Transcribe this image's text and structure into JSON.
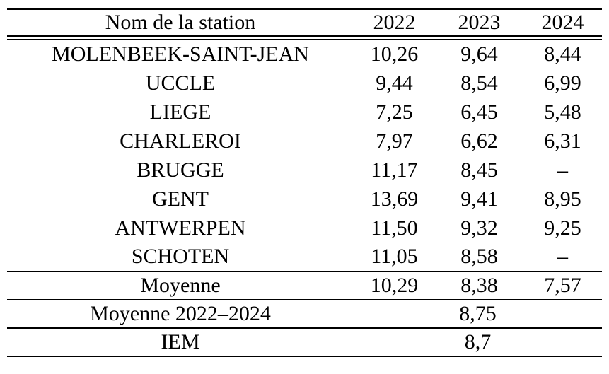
{
  "page": {
    "background_color": "#ffffff",
    "text_color": "#000000"
  },
  "table": {
    "header": {
      "station": "Nom de la station",
      "years": [
        "2022",
        "2023",
        "2024"
      ]
    },
    "rows": [
      {
        "station": "MOLENBEEK-SAINT-JEAN",
        "y2022": "10,26",
        "y2023": "9,64",
        "y2024": "8,44"
      },
      {
        "station": "UCCLE",
        "y2022": "9,44",
        "y2023": "8,54",
        "y2024": "6,99"
      },
      {
        "station": "LIEGE",
        "y2022": "7,25",
        "y2023": "6,45",
        "y2024": "5,48"
      },
      {
        "station": "CHARLEROI",
        "y2022": "7,97",
        "y2023": "6,62",
        "y2024": "6,31"
      },
      {
        "station": "BRUGGE",
        "y2022": "11,17",
        "y2023": "8,45",
        "y2024": "–"
      },
      {
        "station": "GENT",
        "y2022": "13,69",
        "y2023": "9,41",
        "y2024": "8,95"
      },
      {
        "station": "ANTWERPEN",
        "y2022": "11,50",
        "y2023": "9,32",
        "y2024": "9,25"
      },
      {
        "station": "SCHOTEN",
        "y2022": "11,05",
        "y2023": "8,58",
        "y2024": "–"
      }
    ],
    "moyenne_row": {
      "label": "Moyenne",
      "values": [
        "10,29",
        "8,38",
        "7,57"
      ]
    },
    "moyenne_period_row": {
      "label": "Moyenne 2022–2024",
      "value": "8,75"
    },
    "iem_row": {
      "label": "IEM",
      "value": "8,7"
    }
  }
}
